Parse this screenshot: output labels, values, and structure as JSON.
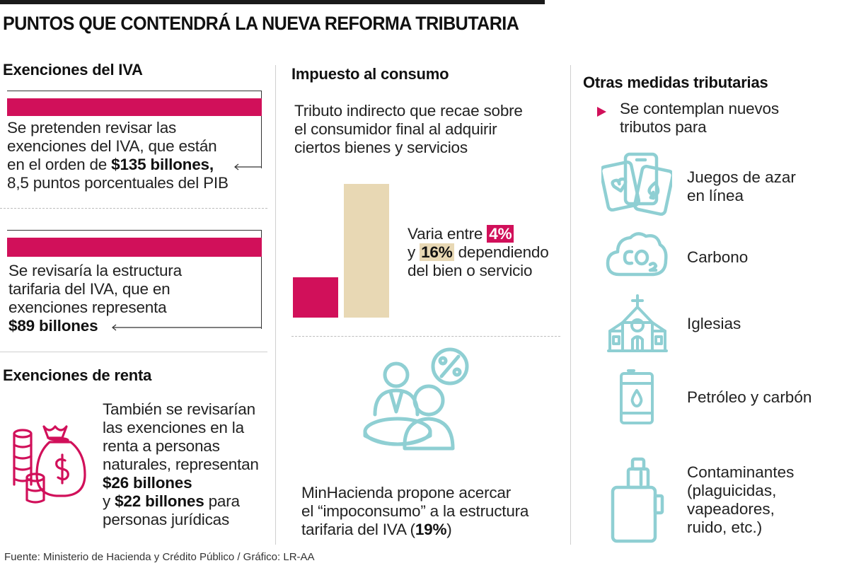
{
  "title": "PUNTOS QUE CONTENDRÁ LA NUEVA REFORMA TRIBUTARIA",
  "colors": {
    "accent_pink": "#d1105a",
    "accent_beige": "#e8d8b4",
    "icon_teal": "#8fcfd3"
  },
  "iva": {
    "heading": "Exenciones del IVA",
    "block1": {
      "l1": "Se pretenden revisar las",
      "l2": "exenciones del IVA, que están",
      "l3_pre": "en el orden de ",
      "l3_bold": "$135 billones,",
      "l4": "8,5 puntos porcentuales del PIB"
    },
    "block2": {
      "l1": "Se revisaría la estructura",
      "l2": "tarifaria del IVA, que en",
      "l3": "exenciones representa",
      "l4_bold": "$89 billones"
    }
  },
  "renta": {
    "heading": "Exenciones de renta",
    "l1": "También se revisarían",
    "l2": "las exenciones en la",
    "l3": "renta a personas",
    "l4": "naturales, representan",
    "l5_bold": "$26 billones",
    "l6_pre": "y ",
    "l6_bold": "$22 billones",
    "l6_post": " para",
    "l7": "personas jurídicas",
    "icon": "money-bag-coins-icon"
  },
  "consumo": {
    "heading": "Impuesto al consumo",
    "desc_l1": "Tributo indirecto que recae sobre",
    "desc_l2": "el consumidor final al adquirir",
    "desc_l3": "ciertos bienes y servicios",
    "rate_low": 4,
    "rate_high": 16,
    "varia_pre": "Varia entre ",
    "varia_low": "4%",
    "varia_y": "y ",
    "varia_high": "16%",
    "varia_post": " dependiendo",
    "varia_l3": "del bien o servicio",
    "icon": "people-percent-icon",
    "prop_l1": "MinHacienda propone acercar",
    "prop_l2": "el “impoconsumo” a la estructura",
    "prop_l3_pre": "tarifaria del IVA (",
    "prop_l3_bold": "19%",
    "prop_l3_post": ")"
  },
  "otras": {
    "heading": "Otras medidas tributarias",
    "intro_l1": "Se contemplan nuevos",
    "intro_l2": "tributos para",
    "items": [
      {
        "l1": "Juegos de azar",
        "l2": "en línea",
        "icon": "playing-cards-phone-icon"
      },
      {
        "l1": "Carbono",
        "icon": "co2-cloud-icon"
      },
      {
        "l1": "Iglesias",
        "icon": "church-icon"
      },
      {
        "l1": "Petróleo y carbón",
        "icon": "oil-barrel-icon"
      },
      {
        "l1": "Contaminantes",
        "l2": "(plaguicidas,",
        "l3": "vapeadores,",
        "l4": "ruido, etc.)",
        "icon": "vape-icon"
      }
    ]
  },
  "source": "Fuente: Ministerio de Hacienda y Crédito Público / Gráfico: LR-AA"
}
